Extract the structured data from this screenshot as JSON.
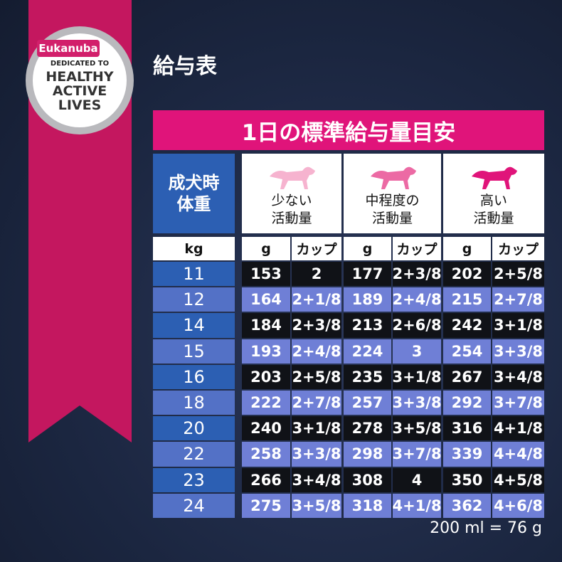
{
  "badge": {
    "brand": "Eukanuba",
    "line1": "DEDICATED TO",
    "line2": "HEALTHY",
    "line3": "ACTIVE",
    "line4": "LIVES"
  },
  "page_title": "給与表",
  "table": {
    "banner": "1日の標準給与量目安",
    "weight_header": [
      "成犬時",
      "体重"
    ],
    "activity_headers": [
      [
        "少ない",
        "活動量"
      ],
      [
        "中程度の",
        "活動量"
      ],
      [
        "高い",
        "活動量"
      ]
    ],
    "units": [
      "kg",
      "g",
      "カップ",
      "g",
      "カップ",
      "g",
      "カップ"
    ],
    "rows": [
      [
        11,
        153,
        "2",
        177,
        "2+3/8",
        202,
        "2+5/8"
      ],
      [
        12,
        164,
        "2+1/8",
        189,
        "2+4/8",
        215,
        "2+7/8"
      ],
      [
        14,
        184,
        "2+3/8",
        213,
        "2+6/8",
        242,
        "3+1/8"
      ],
      [
        15,
        193,
        "2+4/8",
        224,
        "3",
        254,
        "3+3/8"
      ],
      [
        16,
        203,
        "2+5/8",
        235,
        "3+1/8",
        267,
        "3+4/8"
      ],
      [
        18,
        222,
        "2+7/8",
        257,
        "3+3/8",
        292,
        "3+7/8"
      ],
      [
        20,
        240,
        "3+1/8",
        278,
        "3+5/8",
        316,
        "4+1/8"
      ],
      [
        22,
        258,
        "3+3/8",
        298,
        "3+7/8",
        339,
        "4+4/8"
      ],
      [
        23,
        266,
        "3+4/8",
        308,
        "4",
        350,
        "4+5/8"
      ],
      [
        24,
        275,
        "3+5/8",
        318,
        "4+1/8",
        362,
        "4+6/8"
      ]
    ],
    "footnote": "200 ml = 76 g"
  }
}
